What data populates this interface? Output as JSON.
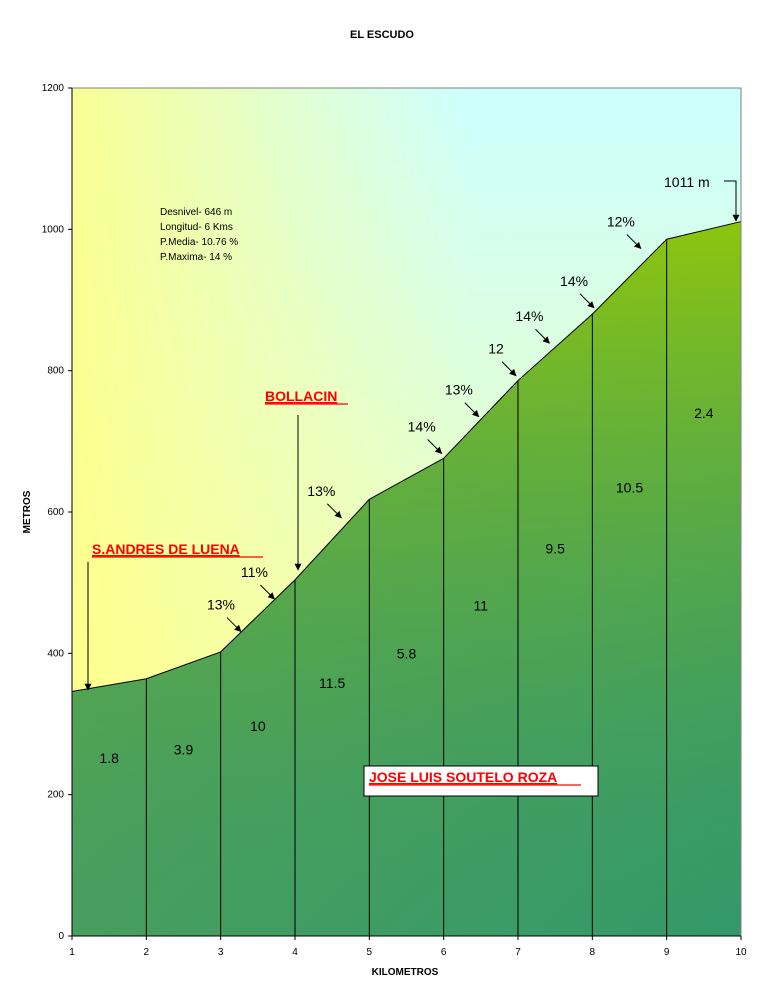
{
  "chart_data": {
    "type": "area",
    "title": "EL ESCUDO",
    "xlabel": "KILOMETROS",
    "ylabel": "METROS",
    "xlim": [
      1,
      10
    ],
    "ylim": [
      0,
      1200
    ],
    "x_ticks": [
      "1",
      "2",
      "3",
      "4",
      "5",
      "6",
      "7",
      "8",
      "9",
      "10"
    ],
    "y_ticks": [
      "0",
      "200",
      "400",
      "600",
      "800",
      "1000",
      "1200"
    ],
    "x": [
      1,
      2,
      3,
      4,
      5,
      6,
      7,
      8,
      9,
      10
    ],
    "y": [
      346,
      364,
      402,
      504,
      618,
      676,
      786,
      880,
      986,
      1011
    ],
    "segment_labels": [
      "1.8",
      "3.9",
      "10",
      "11.5",
      "5.8",
      "11",
      "9.5",
      "10.5",
      "2.4"
    ],
    "grade_annotations": [
      {
        "text": "13%",
        "x": 3.3,
        "y": 428
      },
      {
        "text": "11%",
        "x": 3.75,
        "y": 474
      },
      {
        "text": "13%",
        "x": 4.65,
        "y": 589
      },
      {
        "text": "14%",
        "x": 6.0,
        "y": 680
      },
      {
        "text": "13%",
        "x": 6.5,
        "y": 732
      },
      {
        "text": "12",
        "x": 7.0,
        "y": 790
      },
      {
        "text": "14%",
        "x": 7.45,
        "y": 836
      },
      {
        "text": "14%",
        "x": 8.05,
        "y": 886
      },
      {
        "text": "12%",
        "x": 8.68,
        "y": 970
      }
    ],
    "stats": [
      "Desnivel- 646 m",
      "Longitud- 6 Kms",
      "P.Media- 10.76 %",
      "P.Maxima- 14 %"
    ],
    "places": [
      {
        "name": "S.ANDRES DE LUENA",
        "x": 1.23,
        "y": 346
      },
      {
        "name": "BOLLACIN",
        "x": 4.06,
        "y": 519
      }
    ],
    "summit_label": "1011 m",
    "author": "JOSE LUIS SOUTELO ROZA",
    "colors": {
      "area_top": "#99cc00",
      "area_bottom": "#339966",
      "sky_top": "#ccffff",
      "sky_bottom": "#ffff99",
      "place_text": "#ff0000"
    }
  }
}
